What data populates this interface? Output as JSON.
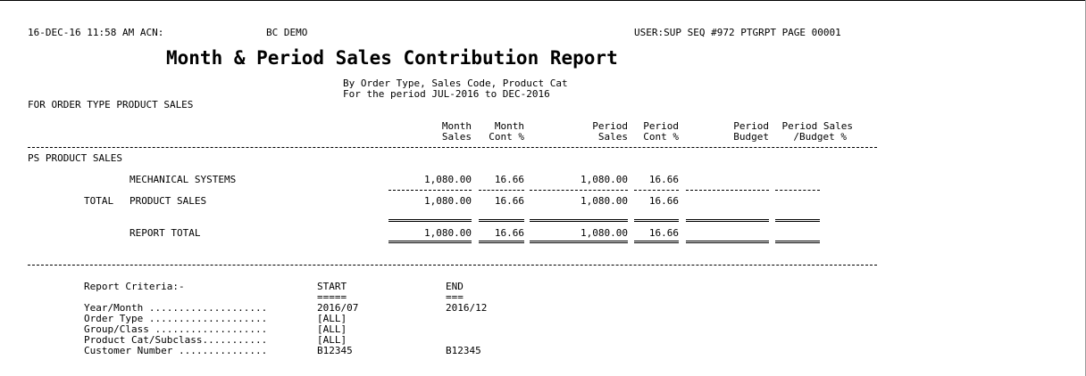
{
  "header": {
    "datetime": "16-DEC-16 11:58 AM ACN:",
    "company": "BC DEMO",
    "user_info": "USER:SUP SEQ #972 PTGRPT PAGE 00001"
  },
  "report": {
    "title": "Month & Period Sales Contribution Report",
    "subtitle1": "By Order Type, Sales Code, Product Cat",
    "subtitle2": "For the period JUL-2016 to DEC-2016",
    "order_type_line": "FOR ORDER TYPE PRODUCT SALES"
  },
  "columns": {
    "month_sales_1": "Month",
    "month_sales_2": "Sales",
    "month_cont_1": "Month",
    "month_cont_2": "Cont %",
    "period_sales_1": "Period",
    "period_sales_2": "Sales",
    "period_cont_1": "Period",
    "period_cont_2": "Cont %",
    "period_budget_1": "Period",
    "period_budget_2": "Budget",
    "period_sales_budget_1": "Period Sales",
    "period_sales_budget_2": "/Budget %"
  },
  "section": {
    "label": "PS PRODUCT SALES"
  },
  "rows": {
    "mechanical": {
      "label": "MECHANICAL SYSTEMS",
      "month_sales": "1,080.00",
      "month_cont": "16.66",
      "period_sales": "1,080.00",
      "period_cont": "16.66"
    },
    "total": {
      "prefix": "TOTAL",
      "label": "PRODUCT SALES",
      "month_sales": "1,080.00",
      "month_cont": "16.66",
      "period_sales": "1,080.00",
      "period_cont": "16.66"
    },
    "report_total": {
      "label": "REPORT TOTAL",
      "month_sales": "1,080.00",
      "month_cont": "16.66",
      "period_sales": "1,080.00",
      "period_cont": "16.66"
    }
  },
  "criteria": {
    "heading": "Report Criteria:-",
    "start_label": "START",
    "start_underline": "=====",
    "end_label": "END",
    "end_underline": "===",
    "items": [
      {
        "label": "Year/Month ....................",
        "start": "2016/07",
        "end": "2016/12"
      },
      {
        "label": "Order Type ....................",
        "start": "[ALL]",
        "end": ""
      },
      {
        "label": "Group/Class ...................",
        "start": "[ALL]",
        "end": ""
      },
      {
        "label": "Product Cat/Subclass...........",
        "start": "[ALL]",
        "end": ""
      },
      {
        "label": "Customer Number ...............",
        "start": "B12345",
        "end": "B12345"
      }
    ]
  }
}
